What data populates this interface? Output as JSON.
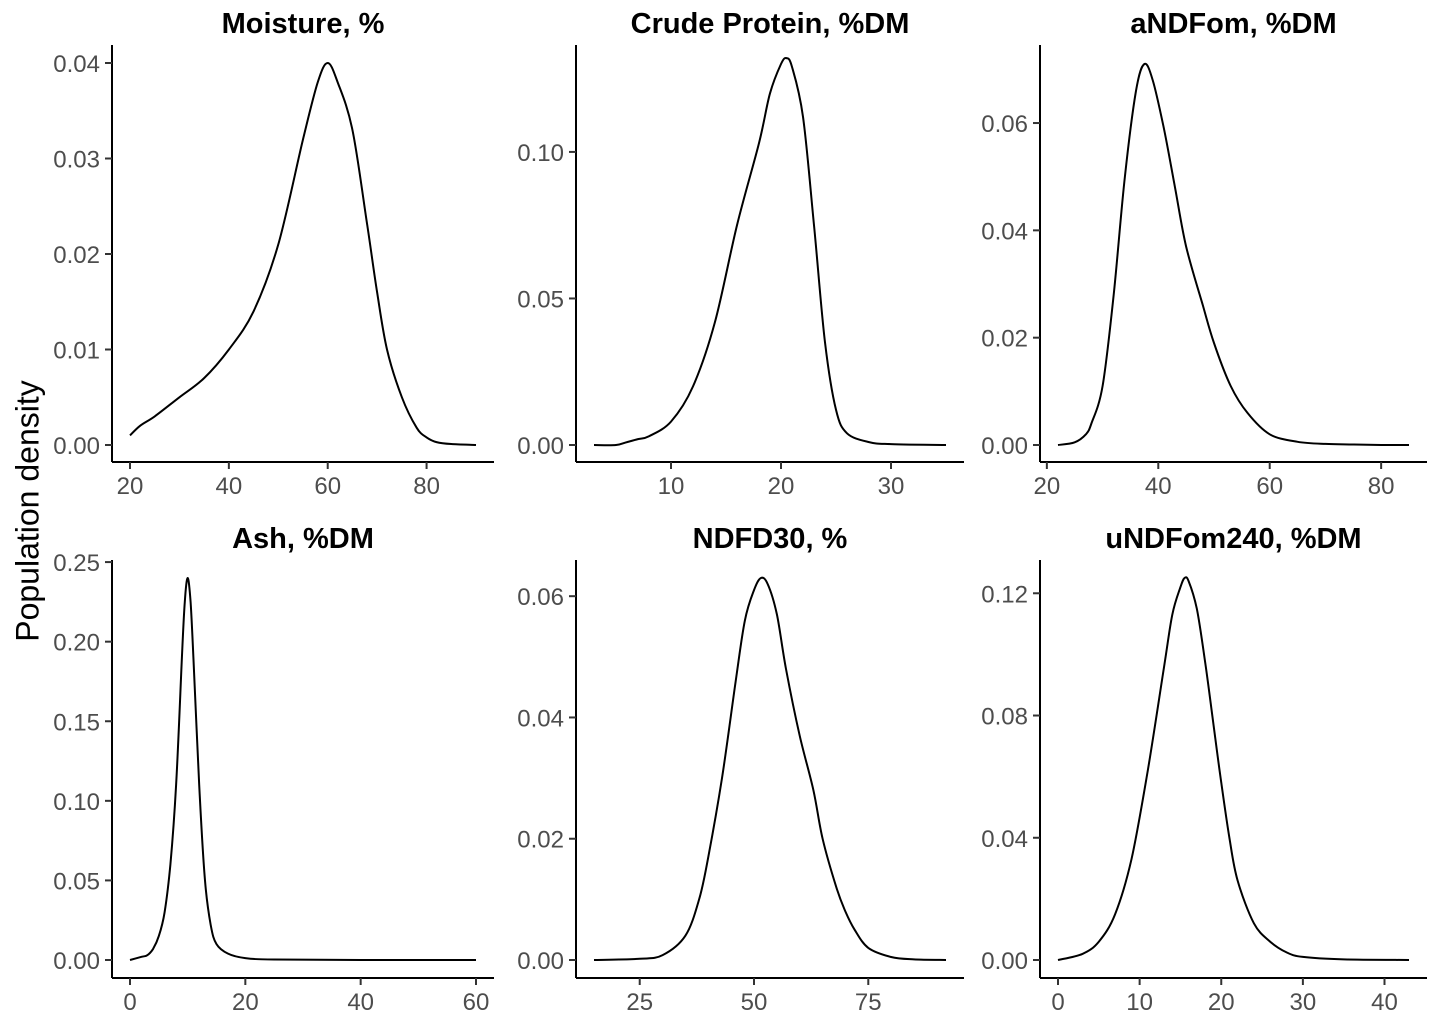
{
  "ylabel": "Population density",
  "chart_data": [
    {
      "type": "line",
      "title": "Moisture, %",
      "xlabel": "",
      "ylabel": "Population density",
      "xlim": [
        20,
        90
      ],
      "ylim": [
        0,
        0.04
      ],
      "xticks": [
        20,
        40,
        60,
        80
      ],
      "xtick_labels": [
        "20",
        "40",
        "60",
        "80"
      ],
      "yticks": [
        0,
        0.01,
        0.02,
        0.03,
        0.04
      ],
      "ytick_labels": [
        "0.00",
        "0.01",
        "0.02",
        "0.03",
        "0.04"
      ],
      "series": [
        {
          "x": [
            20,
            22,
            25,
            30,
            35,
            40,
            45,
            50,
            55,
            58,
            60,
            62,
            65,
            68,
            70,
            72,
            75,
            78,
            80,
            82,
            85,
            90
          ],
          "y": [
            0.001,
            0.002,
            0.003,
            0.005,
            0.007,
            0.01,
            0.014,
            0.021,
            0.032,
            0.038,
            0.04,
            0.038,
            0.033,
            0.023,
            0.016,
            0.01,
            0.005,
            0.0018,
            0.0008,
            0.0003,
            0.0001,
            0.0
          ]
        }
      ]
    },
    {
      "type": "line",
      "title": "Crude Protein, %DM",
      "xlabel": "",
      "ylabel": "Population density",
      "xlim": [
        3,
        35
      ],
      "ylim": [
        0,
        0.13
      ],
      "xticks": [
        10,
        20,
        30
      ],
      "xtick_labels": [
        "10",
        "20",
        "30"
      ],
      "yticks": [
        0,
        0.05,
        0.1
      ],
      "ytick_labels": [
        "0.00",
        "0.05",
        "0.10"
      ],
      "series": [
        {
          "x": [
            3,
            5,
            6,
            7,
            8,
            10,
            12,
            14,
            16,
            18,
            19,
            20,
            20.5,
            21,
            22,
            23,
            24,
            25,
            26,
            28,
            30,
            35
          ],
          "y": [
            0.0,
            0.0,
            0.001,
            0.002,
            0.003,
            0.008,
            0.02,
            0.042,
            0.075,
            0.103,
            0.12,
            0.13,
            0.132,
            0.129,
            0.112,
            0.075,
            0.035,
            0.012,
            0.004,
            0.001,
            0.0003,
            0.0
          ]
        }
      ]
    },
    {
      "type": "line",
      "title": "aNDFom, %DM",
      "xlabel": "",
      "ylabel": "Population density",
      "xlim": [
        22,
        85
      ],
      "ylim": [
        0,
        0.071
      ],
      "xticks": [
        20,
        40,
        60,
        80
      ],
      "xtick_labels": [
        "20",
        "40",
        "60",
        "80"
      ],
      "yticks": [
        0,
        0.02,
        0.04,
        0.06
      ],
      "ytick_labels": [
        "0.00",
        "0.02",
        "0.04",
        "0.06"
      ],
      "series": [
        {
          "x": [
            22,
            25,
            27,
            28,
            30,
            32,
            34,
            36,
            37.5,
            39,
            41,
            43,
            45,
            48,
            50,
            53,
            56,
            60,
            65,
            70,
            75,
            80,
            85
          ],
          "y": [
            0.0,
            0.0005,
            0.002,
            0.004,
            0.011,
            0.028,
            0.05,
            0.066,
            0.071,
            0.068,
            0.059,
            0.048,
            0.037,
            0.026,
            0.019,
            0.011,
            0.006,
            0.002,
            0.0006,
            0.0002,
            0.0001,
            0.0,
            0.0
          ]
        }
      ]
    },
    {
      "type": "line",
      "title": "Ash, %DM",
      "xlabel": "",
      "ylabel": "Population density",
      "xlim": [
        0,
        60
      ],
      "ylim": [
        0,
        0.24
      ],
      "xticks": [
        0,
        20,
        40,
        60
      ],
      "xtick_labels": [
        "0",
        "20",
        "40",
        "60"
      ],
      "yticks": [
        0,
        0.05,
        0.1,
        0.15,
        0.2,
        0.25
      ],
      "ytick_labels": [
        "0.00",
        "0.05",
        "0.10",
        "0.15",
        "0.20",
        "0.25"
      ],
      "series": [
        {
          "x": [
            0,
            2,
            3,
            4,
            5,
            6,
            7,
            8,
            9,
            9.5,
            10,
            10.5,
            11,
            12,
            13,
            14,
            15,
            17,
            20,
            25,
            40,
            60
          ],
          "y": [
            0.0,
            0.002,
            0.003,
            0.007,
            0.015,
            0.03,
            0.06,
            0.11,
            0.19,
            0.225,
            0.24,
            0.225,
            0.19,
            0.11,
            0.05,
            0.022,
            0.01,
            0.004,
            0.0012,
            0.0003,
            0.0,
            0.0
          ]
        }
      ]
    },
    {
      "type": "line",
      "title": "NDFD30, %",
      "xlabel": "",
      "ylabel": "Population density",
      "xlim": [
        15,
        92
      ],
      "ylim": [
        0,
        0.063
      ],
      "xticks": [
        25,
        50,
        75
      ],
      "xtick_labels": [
        "25",
        "50",
        "75"
      ],
      "yticks": [
        0,
        0.02,
        0.04,
        0.06
      ],
      "ytick_labels": [
        "0.00",
        "0.02",
        "0.04",
        "0.06"
      ],
      "series": [
        {
          "x": [
            15,
            25,
            30,
            35,
            38,
            40,
            43,
            46,
            48,
            50,
            51.5,
            53,
            55,
            57,
            60,
            63,
            65,
            68,
            70,
            72,
            75,
            80,
            85,
            92
          ],
          "y": [
            0.0,
            0.0002,
            0.0008,
            0.004,
            0.01,
            0.017,
            0.03,
            0.046,
            0.056,
            0.061,
            0.063,
            0.062,
            0.057,
            0.048,
            0.037,
            0.028,
            0.02,
            0.012,
            0.008,
            0.005,
            0.002,
            0.0005,
            0.0001,
            0.0
          ]
        }
      ]
    },
    {
      "type": "line",
      "title": "uNDFom240, %DM",
      "xlabel": "",
      "ylabel": "Population density",
      "xlim": [
        0,
        43
      ],
      "ylim": [
        0,
        0.125
      ],
      "xticks": [
        0,
        10,
        20,
        30,
        40
      ],
      "xtick_labels": [
        "0",
        "10",
        "20",
        "30",
        "40"
      ],
      "yticks": [
        0,
        0.04,
        0.08,
        0.12
      ],
      "ytick_labels": [
        "0.00",
        "0.04",
        "0.08",
        "0.12"
      ],
      "series": [
        {
          "x": [
            0,
            3,
            5,
            7,
            9,
            11,
            13,
            14,
            15,
            15.5,
            16,
            17,
            18,
            19,
            20,
            21,
            22,
            24,
            26,
            28,
            30,
            35,
            43
          ],
          "y": [
            0.0,
            0.002,
            0.006,
            0.015,
            0.033,
            0.062,
            0.096,
            0.113,
            0.122,
            0.125,
            0.124,
            0.115,
            0.098,
            0.078,
            0.058,
            0.04,
            0.026,
            0.012,
            0.006,
            0.0025,
            0.001,
            0.0002,
            0.0
          ]
        }
      ]
    }
  ]
}
